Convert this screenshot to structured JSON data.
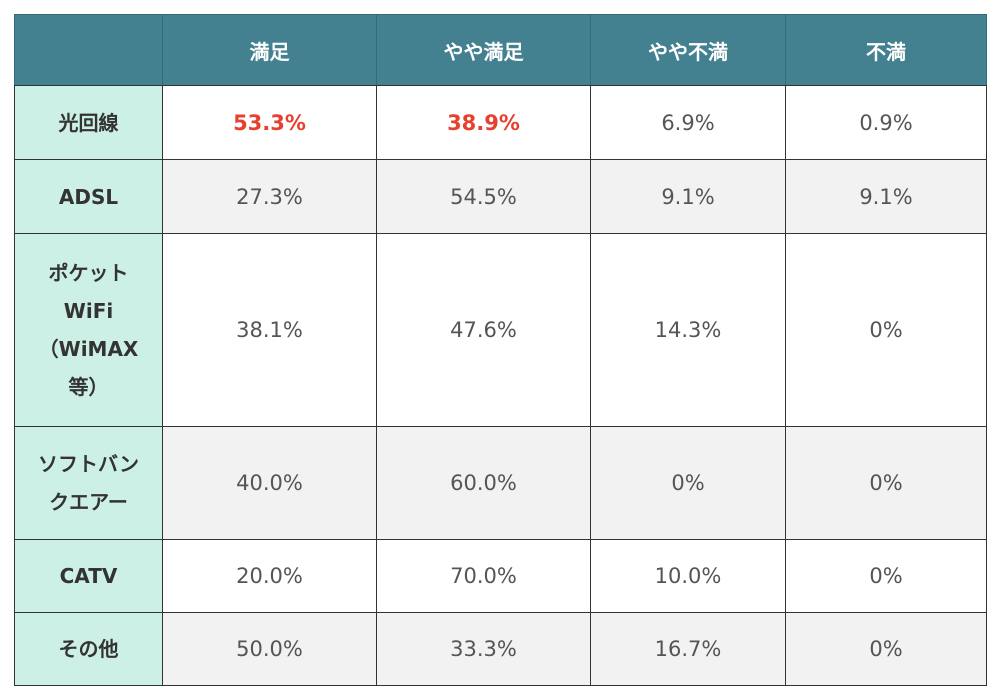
{
  "table": {
    "header": [
      "",
      "満足",
      "やや満足",
      "やや不満",
      "不満"
    ],
    "rows": [
      {
        "label": "光回線",
        "values": [
          "53.3%",
          "38.9%",
          "6.9%",
          "0.9%"
        ]
      },
      {
        "label": "ADSL",
        "values": [
          "27.3%",
          "54.5%",
          "9.1%",
          "9.1%"
        ]
      },
      {
        "label": "ポケット\nWiFi\n（WiMAX\n等）",
        "values": [
          "38.1%",
          "47.6%",
          "14.3%",
          "0%"
        ]
      },
      {
        "label": "ソフトバン\nクエアー",
        "values": [
          "40.0%",
          "60.0%",
          "0%",
          "0%"
        ]
      },
      {
        "label": "CATV",
        "values": [
          "20.0%",
          "70.0%",
          "10.0%",
          "0%"
        ]
      },
      {
        "label": "その他",
        "values": [
          "50.0%",
          "33.3%",
          "16.7%",
          "0%"
        ]
      }
    ],
    "colors": {
      "header_bg": "#448190",
      "label_bg": "#cdf0e6",
      "highlight_text": "#e8402e",
      "alt_row_bg": "#f2f2f2"
    }
  }
}
